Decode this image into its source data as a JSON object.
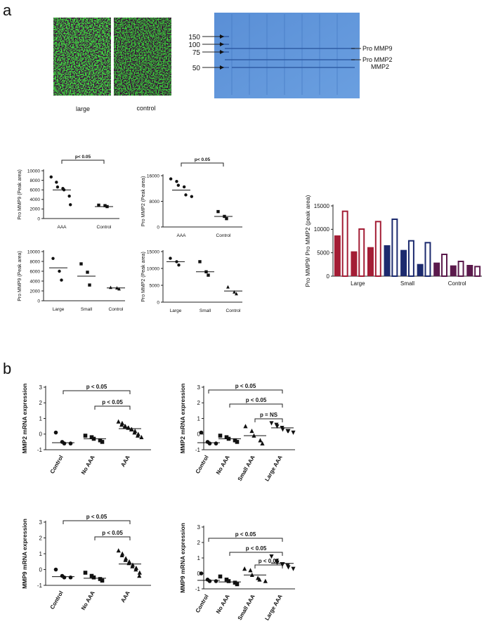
{
  "panel_labels": [
    "a",
    "b"
  ],
  "images": {
    "labels": [
      "large",
      "control"
    ]
  },
  "gel": {
    "ladder": [
      "150",
      "100",
      "75",
      "50"
    ],
    "bands": [
      "Pro MMP9",
      "Pro MMP2",
      "MMP2"
    ]
  },
  "chart_data": [
    {
      "type": "dotplot",
      "y_label": "Pro MMP9 (Peak area)",
      "categories": [
        "AAA",
        "Control"
      ],
      "markers": [
        "circle",
        "square"
      ],
      "points": [
        [
          8700,
          7600,
          6600,
          6300,
          6000,
          4700,
          2900
        ],
        [
          2800,
          2700,
          2500
        ]
      ],
      "means": [
        6000,
        2500
      ],
      "ylim": [
        0,
        10000
      ],
      "yticks": [
        0,
        2000,
        4000,
        6000,
        8000,
        10000
      ],
      "brackets": [
        {
          "between": [
            "AAA",
            "Control"
          ],
          "label": "p< 0.05"
        }
      ]
    },
    {
      "type": "dotplot",
      "y_label": "Pro MMP2 (Peak area)",
      "categories": [
        "AAA",
        "Control"
      ],
      "markers": [
        "circle",
        "square"
      ],
      "points": [
        [
          15000,
          14200,
          13000,
          12500,
          10000,
          9500
        ],
        [
          4800,
          3300,
          2600
        ]
      ],
      "means": [
        11500,
        3300
      ],
      "ylim": [
        0,
        16000
      ],
      "yticks": [
        0,
        8000,
        16000
      ],
      "brackets": [
        {
          "between": [
            "AAA",
            "Control"
          ],
          "label": "p< 0.05"
        }
      ]
    },
    {
      "type": "dotplot",
      "y_label": "Pro MMP9 (Peak area)",
      "categories": [
        "Large",
        "Small",
        "Control"
      ],
      "markers": [
        "circle",
        "square",
        "triangle"
      ],
      "points": [
        [
          8600,
          6000,
          4200
        ],
        [
          7500,
          5800,
          3200
        ],
        [
          2700,
          2600,
          2400
        ]
      ],
      "means": [
        6700,
        5000,
        2600
      ],
      "ylim": [
        0,
        10000
      ],
      "yticks": [
        0,
        2000,
        4000,
        6000,
        8000,
        10000
      ],
      "brackets": []
    },
    {
      "type": "dotplot",
      "y_label": "Pro MMP2 (Peak area)",
      "categories": [
        "Large",
        "Small",
        "Control"
      ],
      "markers": [
        "circle",
        "square",
        "triangle"
      ],
      "points": [
        [
          13000,
          12000,
          11000
        ],
        [
          12000,
          9000,
          8000
        ],
        [
          4500,
          3000,
          2500
        ]
      ],
      "means": [
        12000,
        9000,
        3300
      ],
      "ylim": [
        0,
        15000
      ],
      "yticks": [
        0,
        5000,
        10000,
        15000
      ],
      "brackets": []
    },
    {
      "type": "bar",
      "y_label": "Pro MMP9/ Pro MMP2 (peak area)",
      "categories": [
        null,
        "Large",
        null,
        null,
        "Small",
        null,
        null,
        "Control",
        null
      ],
      "colors": [
        "#a31d35",
        "#a31d35",
        "#a31d35",
        "#1c2a6e",
        "#1c2a6e",
        "#1c2a6e",
        "#5b1a4c",
        "#5b1a4c",
        "#5b1a4c"
      ],
      "series": [
        {
          "style": "filled",
          "values": [
            8700,
            5300,
            6200,
            6600,
            5600,
            2600,
            2900,
            2300,
            2400
          ]
        },
        {
          "style": "open",
          "values": [
            14000,
            10200,
            11800,
            12300,
            7700,
            7300,
            4800,
            3300,
            2200
          ]
        }
      ],
      "ylim": [
        0,
        15000
      ],
      "yticks": [
        0,
        5000,
        10000,
        15000
      ]
    },
    {
      "type": "dotplot",
      "y_label": "MMP2 mRNA expression",
      "categories": [
        "Control",
        "No AAA",
        "AAA"
      ],
      "markers": [
        "circle",
        "square",
        "triangle"
      ],
      "points": [
        [
          0.1,
          -0.5,
          -0.6,
          -0.6
        ],
        [
          -0.1,
          -0.2,
          -0.3,
          -0.4,
          -0.5
        ],
        [
          0.8,
          0.7,
          0.6,
          0.5,
          0.5,
          0.4,
          0.4,
          0.3,
          0.3,
          0.2,
          0.1,
          0,
          -0.1,
          -0.2
        ]
      ],
      "means": [
        -0.55,
        -0.3,
        0.35
      ],
      "ylim": [
        -1,
        3
      ],
      "yticks": [
        -1,
        0,
        1,
        2,
        3
      ],
      "brackets": [
        {
          "between": [
            "Control",
            "AAA"
          ],
          "label": "p < 0.05"
        },
        {
          "between": [
            "No AAA",
            "AAA"
          ],
          "label": "p < 0.05"
        }
      ]
    },
    {
      "type": "dotplot",
      "y_label": "MMP2 mRNA expression",
      "categories": [
        "Control",
        "No AAA",
        "Small AAA",
        "Large AAA"
      ],
      "markers": [
        "circle",
        "square",
        "triangle",
        "triangle-down"
      ],
      "points": [
        [
          0.1,
          -0.5,
          -0.6,
          -0.6
        ],
        [
          -0.1,
          -0.2,
          -0.3,
          -0.4,
          -0.5
        ],
        [
          0.5,
          0.2,
          -0.1,
          -0.4,
          -0.6
        ],
        [
          0.7,
          0.6,
          0.5,
          0.4,
          0.3,
          0.2,
          0.2,
          0.1
        ]
      ],
      "means": [
        -0.55,
        -0.3,
        -0.1,
        0.4
      ],
      "ylim": [
        -1,
        3
      ],
      "yticks": [
        -1,
        0,
        1,
        2,
        3
      ],
      "brackets": [
        {
          "between": [
            "Control",
            "Large AAA"
          ],
          "label": "p < 0.05"
        },
        {
          "between": [
            "No AAA",
            "Large AAA"
          ],
          "label": "p < 0.05"
        },
        {
          "between": [
            "Small AAA",
            "Large AAA"
          ],
          "label": "p = NS"
        }
      ]
    },
    {
      "type": "dotplot",
      "y_label": "MMP9 mRNA expression",
      "categories": [
        "Control",
        "No AAA",
        "AAA"
      ],
      "markers": [
        "circle",
        "square",
        "triangle"
      ],
      "points": [
        [
          0,
          -0.4,
          -0.5,
          -0.5
        ],
        [
          -0.2,
          -0.4,
          -0.5,
          -0.6,
          -0.7
        ],
        [
          1.2,
          1.0,
          0.9,
          0.7,
          0.6,
          0.5,
          0.4,
          0.3,
          0.2,
          0.1,
          0,
          -0.2,
          -0.4
        ]
      ],
      "means": [
        -0.45,
        -0.55,
        0.35
      ],
      "ylim": [
        -1,
        3
      ],
      "yticks": [
        -1,
        0,
        1,
        2,
        3
      ],
      "brackets": [
        {
          "between": [
            "Control",
            "AAA"
          ],
          "label": "p < 0.05"
        },
        {
          "between": [
            "No AAA",
            "AAA"
          ],
          "label": "p < 0.05"
        }
      ]
    },
    {
      "type": "dotplot",
      "y_label": "MMP9 mRNA expression",
      "categories": [
        "Control",
        "No AAA",
        "Small AAA",
        "Large AAA"
      ],
      "markers": [
        "circle",
        "square",
        "triangle",
        "triangle-down"
      ],
      "points": [
        [
          0,
          -0.4,
          -0.5,
          -0.5
        ],
        [
          -0.2,
          -0.4,
          -0.5,
          -0.6,
          -0.7
        ],
        [
          0.3,
          0.2,
          -0.1,
          -0.3,
          -0.4,
          -0.5
        ],
        [
          1.1,
          0.8,
          0.7,
          0.6,
          0.6,
          0.5,
          0.4,
          0.3
        ]
      ],
      "means": [
        -0.45,
        -0.55,
        -0.1,
        0.65
      ],
      "ylim": [
        -1,
        3
      ],
      "yticks": [
        -1,
        0,
        1,
        2,
        3
      ],
      "brackets": [
        {
          "between": [
            "Control",
            "Large AAA"
          ],
          "label": "p < 0.05"
        },
        {
          "between": [
            "No AAA",
            "Large AAA"
          ],
          "label": "p < 0.05"
        },
        {
          "between": [
            "Small AAA",
            "Large AAA"
          ],
          "label": "p < 0.05"
        }
      ]
    }
  ]
}
